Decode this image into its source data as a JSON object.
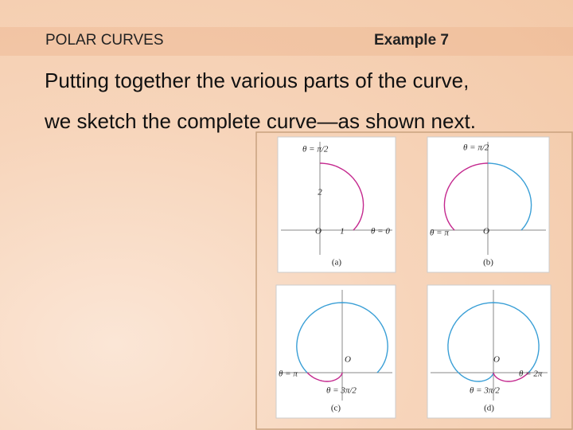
{
  "header": {
    "section": "POLAR CURVES",
    "example": "Example 7"
  },
  "body": [
    "Putting together the various parts of the curve,",
    "we sketch the complete curve—as shown next."
  ],
  "panels": [
    {
      "caption": "(a)",
      "labels": [
        "θ = π/2",
        "2",
        "O",
        "1",
        "θ = 0"
      ]
    },
    {
      "caption": "(b)",
      "labels": [
        "θ = π/2",
        "θ = π",
        "O"
      ]
    },
    {
      "caption": "(c)",
      "labels": [
        "θ = π",
        "O",
        "θ = 3π/2"
      ]
    },
    {
      "caption": "(d)",
      "labels": [
        "O",
        "θ = 2π",
        "θ = 3π/2"
      ]
    }
  ]
}
